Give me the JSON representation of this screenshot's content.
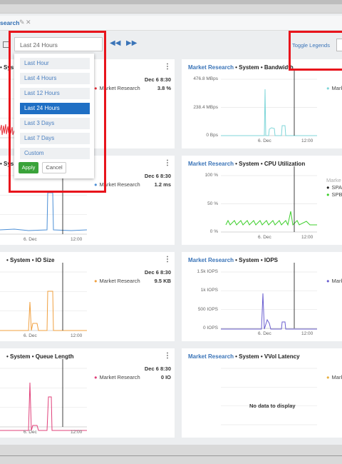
{
  "tab": {
    "title": "search"
  },
  "toolbar": {
    "range": "Last 24 Hours",
    "toggle_legends": "Toggle Legends"
  },
  "dropdown": {
    "options": [
      "Last Hour",
      "Last 4 Hours",
      "Last 12 Hours",
      "Last 24 Hours",
      "Last 3 Days",
      "Last 7 Days",
      "Custom"
    ],
    "apply": "Apply",
    "cancel": "Cancel"
  },
  "panels": [
    {
      "title": "• Sys",
      "date": "Dec 6 8:30",
      "legend": [
        "Market Research"
      ],
      "value": "3.8 %"
    },
    {
      "source": "Market Research",
      "title": "• System • Bandwidth",
      "yticks": [
        "476.8 MBps",
        "238.4 MBps",
        "0 Bps"
      ],
      "xticks": [
        "6. Dec",
        "12:00"
      ],
      "legend": [
        "Mark"
      ]
    },
    {
      "title": "• Sys",
      "date": "Dec 6 8:30",
      "legend": [
        "Market Research"
      ],
      "value": "1.2 ms",
      "xticks": [
        "6. Dec",
        "12:00"
      ]
    },
    {
      "source": "Market Research",
      "title": "• System • CPU Utilization",
      "yticks": [
        "100 %",
        "50 %",
        "0 %"
      ],
      "xticks": [
        "6. Dec",
        "12:00"
      ],
      "legend": [
        "Marke",
        "SPA",
        "SPB"
      ]
    },
    {
      "title": "• System • IO Size",
      "date": "Dec 6 8:30",
      "legend": [
        "Market Research"
      ],
      "value": "9.5 KB",
      "xticks": [
        "6. Dec",
        "12:00"
      ]
    },
    {
      "source": "Market Research",
      "title": "• System • IOPS",
      "yticks": [
        "1.5k IOPS",
        "1k IOPS",
        "500 IOPS",
        "0 IOPS"
      ],
      "xticks": [
        "6. Dec",
        "12:00"
      ],
      "legend": [
        "Mark"
      ]
    },
    {
      "title": "• System • Queue Length",
      "date": "Dec 6 8:30",
      "legend": [
        "Market Research"
      ],
      "value": "0 IO",
      "xticks": [
        "6. Dec",
        "12:00"
      ]
    },
    {
      "source": "Market Research",
      "title": "• System • VVol Latency",
      "message": "No data to display",
      "legend": [
        "Mark"
      ]
    }
  ]
}
